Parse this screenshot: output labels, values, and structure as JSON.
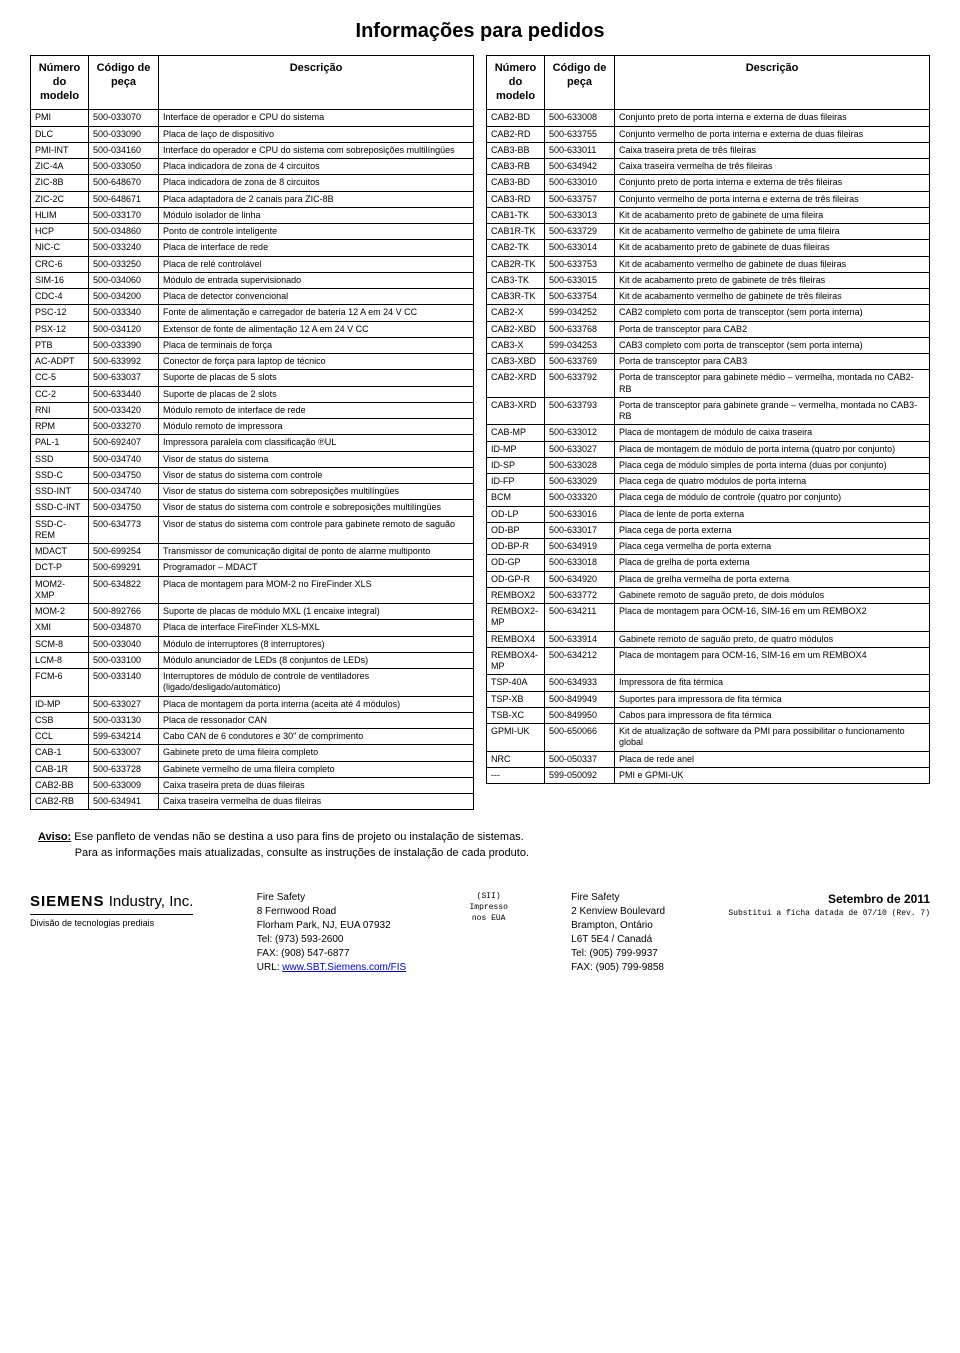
{
  "title": "Informações para pedidos",
  "headers": {
    "model": "Número do modelo",
    "code": "Código de peça",
    "desc": "Descrição"
  },
  "left": [
    [
      "PMI",
      "500-033070",
      "Interface de operador e CPU do sistema"
    ],
    [
      "DLC",
      "500-033090",
      "Placa de laço de dispositivo"
    ],
    [
      "PMI-INT",
      "500-034160",
      "Interface do operador e CPU do sistema com sobreposições multilíngües"
    ],
    [
      "ZIC-4A",
      "500-033050",
      "Placa indicadora de zona de 4 circuitos"
    ],
    [
      "ZIC-8B",
      "500-648670",
      "Placa indicadora de zona de 8 circuitos"
    ],
    [
      "ZIC-2C",
      "500-648671",
      "Placa adaptadora de 2 canais para ZIC-8B"
    ],
    [
      "HLIM",
      "500-033170",
      "Módulo isolador de linha"
    ],
    [
      "HCP",
      "500-034860",
      "Ponto de controle inteligente"
    ],
    [
      "NIC-C",
      "500-033240",
      "Placa de interface de rede"
    ],
    [
      "CRC-6",
      "500-033250",
      "Placa de relé controlável"
    ],
    [
      "SIM-16",
      "500-034060",
      "Módulo de entrada supervisionado"
    ],
    [
      "CDC-4",
      "500-034200",
      "Placa de detector convencional"
    ],
    [
      "PSC-12",
      "500-033340",
      "Fonte de alimentação e carregador de bateria 12 A em 24 V CC"
    ],
    [
      "PSX-12",
      "500-034120",
      "Extensor de fonte de alimentação 12 A em 24 V CC"
    ],
    [
      "PTB",
      "500-033390",
      "Placa de terminais de força"
    ],
    [
      "AC-ADPT",
      "500-633992",
      "Conector de força para laptop de técnico"
    ],
    [
      "CC-5",
      "500-633037",
      "Suporte de placas de 5 slots"
    ],
    [
      "CC-2",
      "500-633440",
      "Suporte de placas de 2 slots"
    ],
    [
      "RNI",
      "500-033420",
      "Módulo remoto de interface de rede"
    ],
    [
      "RPM",
      "500-033270",
      "Módulo remoto de impressora"
    ],
    [
      "PAL-1",
      "500-692407",
      "Impressora paralela com classificação ℗UL"
    ],
    [
      "SSD",
      "500-034740",
      "Visor de status do sistema"
    ],
    [
      "SSD-C",
      "500-034750",
      "Visor de status do sistema com controle"
    ],
    [
      "SSD-INT",
      "500-034740",
      "Visor de status do sistema com sobreposições multilíngües"
    ],
    [
      "SSD-C-INT",
      "500-034750",
      "Visor de status do sistema com controle e sobreposições multilíngües"
    ],
    [
      "SSD-C-REM",
      "500-634773",
      "Visor de status do sistema com controle para gabinete remoto de saguão"
    ],
    [
      "MDACT",
      "500-699254",
      "Transmissor de comunicação digital de ponto de alarme multiponto"
    ],
    [
      "DCT-P",
      "500-699291",
      "Programador – MDACT"
    ],
    [
      "MOM2-XMP",
      "500-634822",
      "Placa de montagem para MOM-2 no FireFinder XLS"
    ],
    [
      "MOM-2",
      "500-892766",
      "Suporte de placas de módulo MXL (1 encaixe integral)"
    ],
    [
      "XMI",
      "500-034870",
      "Placa de interface FireFinder XLS-MXL"
    ],
    [
      "SCM-8",
      "500-033040",
      "Módulo de interruptores (8 interruptores)"
    ],
    [
      "LCM-8",
      "500-033100",
      "Módulo anunciador de LEDs (8 conjuntos de LEDs)"
    ],
    [
      "FCM-6",
      "500-033140",
      "Interruptores de módulo de controle de ventiladores (ligado/desligado/automático)"
    ],
    [
      "ID-MP",
      "500-633027",
      "Placa de montagem da porta interna (aceita até 4 módulos)"
    ],
    [
      "CSB",
      "500-033130",
      "Placa de ressonador CAN"
    ],
    [
      "CCL",
      "599-634214",
      "Cabo CAN de 6 condutores e 30\" de comprimento"
    ],
    [
      "CAB-1",
      "500-633007",
      "Gabinete preto de uma fileira completo"
    ],
    [
      "CAB-1R",
      "500-633728",
      "Gabinete vermelho de uma fileira completo"
    ],
    [
      "CAB2-BB",
      "500-633009",
      "Caixa traseira preta de duas fileiras"
    ],
    [
      "CAB2-RB",
      "500-634941",
      "Caixa traseira vermelha de duas fileiras"
    ]
  ],
  "right": [
    [
      "CAB2-BD",
      "500-633008",
      "Conjunto preto de porta interna e externa de duas fileiras"
    ],
    [
      "CAB2-RD",
      "500-633755",
      "Conjunto vermelho de porta interna e externa de duas fileiras"
    ],
    [
      "CAB3-BB",
      "500-633011",
      "Caixa traseira preta de três fileiras"
    ],
    [
      "CAB3-RB",
      "500-634942",
      "Caixa traseira vermelha de três fileiras"
    ],
    [
      "CAB3-BD",
      "500-633010",
      "Conjunto preto de porta interna e externa de três fileiras"
    ],
    [
      "CAB3-RD",
      "500-633757",
      "Conjunto vermelho de porta interna e externa de três fileiras"
    ],
    [
      "CAB1-TK",
      "500-633013",
      "Kit de acabamento preto de gabinete de uma fileira"
    ],
    [
      "CAB1R-TK",
      "500-633729",
      "Kit de acabamento vermelho de gabinete de uma fileira"
    ],
    [
      "CAB2-TK",
      "500-633014",
      "Kit de acabamento preto de gabinete de duas fileiras"
    ],
    [
      "CAB2R-TK",
      "500-633753",
      "Kit de acabamento vermelho de gabinete de duas fileiras"
    ],
    [
      "CAB3-TK",
      "500-633015",
      "Kit de acabamento preto de gabinete de três fileiras"
    ],
    [
      "CAB3R-TK",
      "500-633754",
      "Kit de acabamento vermelho de gabinete de três fileiras"
    ],
    [
      "CAB2-X",
      "599-034252",
      "CAB2 completo com porta de transceptor (sem porta interna)"
    ],
    [
      "CAB2-XBD",
      "500-633768",
      "Porta de transceptor para CAB2"
    ],
    [
      "CAB3-X",
      "599-034253",
      "CAB3 completo com porta de transceptor (sem porta interna)"
    ],
    [
      "CAB3-XBD",
      "500-633769",
      "Porta de transceptor para CAB3"
    ],
    [
      "CAB2-XRD",
      "500-633792",
      "Porta de transceptor para gabinete médio – vermelha, montada no CAB2-RB"
    ],
    [
      "CAB3-XRD",
      "500-633793",
      "Porta de transceptor para gabinete grande – vermelha, montada no CAB3-RB"
    ],
    [
      "CAB-MP",
      "500-633012",
      "Placa de montagem de módulo de caixa traseira"
    ],
    [
      "ID-MP",
      "500-633027",
      "Placa de montagem de módulo de porta interna (quatro por conjunto)"
    ],
    [
      "ID-SP",
      "500-633028",
      "Placa cega de módulo simples de porta interna (duas por conjunto)"
    ],
    [
      "ID-FP",
      "500-633029",
      "Placa cega de quatro módulos de porta interna"
    ],
    [
      "BCM",
      "500-033320",
      "Placa cega de módulo de controle (quatro por conjunto)"
    ],
    [
      "OD-LP",
      "500-633016",
      "Placa de lente de porta externa"
    ],
    [
      "OD-BP",
      "500-633017",
      "Placa cega de porta externa"
    ],
    [
      "OD-BP-R",
      "500-634919",
      "Placa cega vermelha de porta externa"
    ],
    [
      "OD-GP",
      "500-633018",
      "Placa de grelha de porta externa"
    ],
    [
      "OD-GP-R",
      "500-634920",
      "Placa de grelha vermelha de porta externa"
    ],
    [
      "REMBOX2",
      "500-633772",
      "Gabinete remoto de saguão preto, de dois módulos"
    ],
    [
      "REMBOX2-MP",
      "500-634211",
      "Placa de montagem para OCM-16, SIM-16 em um REMBOX2"
    ],
    [
      "REMBOX4",
      "500-633914",
      "Gabinete remoto de saguão preto, de quatro módulos"
    ],
    [
      "REMBOX4-MP",
      "500-634212",
      "Placa de montagem para OCM-16, SIM-16 em um REMBOX4"
    ],
    [
      "TSP-40A",
      "500-634933",
      "Impressora de fita térmica"
    ],
    [
      "TSP-XB",
      "500-849949",
      "Suportes para impressora de fita térmica"
    ],
    [
      "TSB-XC",
      "500-849950",
      "Cabos para impressora de fita térmica"
    ],
    [
      "GPMI-UK",
      "500-650066",
      "Kit de atualização de software da PMI para possibilitar o funcionamento global"
    ],
    [
      "NRC",
      "500-050337",
      "Placa de rede anel"
    ],
    [
      "---",
      "599-050092",
      "PMI e GPMI-UK"
    ]
  ],
  "notice": {
    "label": "Aviso:",
    "line1": "Ese panfleto de vendas não se destina a uso para fins de projeto ou instalação de sistemas.",
    "line2": "Para as informações mais atualizadas, consulte as instruções de instalação de cada produto."
  },
  "footer": {
    "brand": "SIEMENS",
    "company": "Industry, Inc.",
    "division": "Divisão de tecnologias prediais",
    "addr1": {
      "name": "Fire Safety",
      "street": "8 Fernwood Road",
      "city": "Florham Park, NJ, EUA 07932",
      "tel": "Tel: (973) 593-2600",
      "fax": "FAX: (908) 547-6877",
      "urlLabel": "URL: ",
      "url": "www.SBT.Siemens.com/FIS"
    },
    "mid": {
      "a": "(SII)",
      "b": "Impresso",
      "c": "nos EUA"
    },
    "addr2": {
      "name": "Fire Safety",
      "street": "2 Kenview Boulevard",
      "city": "Brampton, Ontário",
      "zip": "L6T 5E4 / Canadá",
      "tel": "Tel: (905) 799-9937",
      "fax": "FAX: (905) 799-9858"
    },
    "date": {
      "main": "Setembro de 2011",
      "sub": "Substitui a ficha datada de 07/10 (Rev. 7)"
    }
  }
}
